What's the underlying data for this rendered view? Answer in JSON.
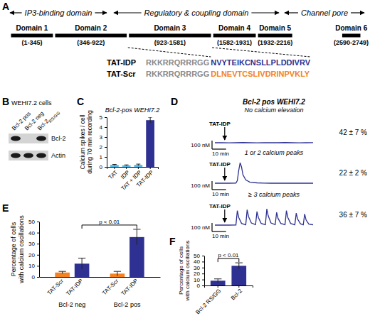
{
  "diagram": {
    "panel": "A",
    "regions": [
      "IP3-binding domain",
      "Regulatory & coupling domain",
      "Channel pore"
    ],
    "domains": [
      {
        "name": "Domain 1",
        "start": 1,
        "end": 345,
        "label": "(1-345)"
      },
      {
        "name": "Domain 2",
        "start": 346,
        "end": 922,
        "label": "(346-922)"
      },
      {
        "name": "Domain 3",
        "start": 923,
        "end": 1581,
        "label": "(923-1581)"
      },
      {
        "name": "Domain 4",
        "start": 1582,
        "end": 1931,
        "label": "(1582-1931)"
      },
      {
        "name": "Domain 5",
        "start": 1932,
        "end": 2216,
        "label": "(1932-2216)"
      },
      {
        "name": "Domain 6",
        "start": 2590,
        "end": 2749,
        "label": "(2590-2749)"
      }
    ],
    "peptides": [
      {
        "name": "TAT-IDP",
        "tat": "RKKRRQRRRGG",
        "sequence": "NVYTEIKCNSLLPLDDIVRV",
        "color": "#2e3192"
      },
      {
        "name": "TAT-Scr",
        "tat": "RKKRRQRRRGG",
        "sequence": "DLNEVTCSLIVDRINPVKLY",
        "color": "#f58220"
      }
    ]
  },
  "blot": {
    "panel": "B",
    "title": "WEHI7.2 cells",
    "lanes": [
      {
        "text": "Bcl-2 pos"
      },
      {
        "text": "Bcl-2 neg"
      },
      {
        "text": "Bcl-2",
        "subscript": "RS/GG"
      }
    ],
    "rows": [
      {
        "label": "Bcl-2",
        "bands": [
          true,
          false,
          true
        ]
      },
      {
        "label": "Actin",
        "bands": [
          true,
          true,
          true
        ]
      }
    ]
  },
  "chart_data": [
    {
      "panel": "C",
      "type": "bar",
      "title": "Bcl-2-pos WEHI7.2",
      "y_label": [
        "Calcium spikes / cell",
        "during 70 min recording"
      ],
      "categories": [
        "TAT",
        "IDP",
        "TAT + IDP",
        "TAT-IDP"
      ],
      "values": [
        0.2,
        0.15,
        0.2,
        4.7
      ],
      "errors": [
        0.05,
        0.05,
        0.08,
        0.3
      ],
      "colors": [
        "#4db8e8",
        "#4db8e8",
        "#4db8e8",
        "#2e3192"
      ],
      "ylim": [
        0,
        5
      ],
      "yticks": [
        0,
        1,
        2,
        3,
        4,
        5
      ]
    },
    {
      "panel": "D",
      "type": "line",
      "title": "Bcl-2 pos WEHI7.2",
      "subtitle": "No calcium elevation",
      "x": [
        0,
        5,
        10,
        15,
        20,
        25,
        30,
        35,
        40,
        45,
        50,
        55,
        60,
        65,
        70
      ],
      "values": [
        100,
        101,
        99,
        100,
        102,
        100,
        99,
        101,
        100,
        100,
        102,
        100,
        99,
        100,
        101
      ],
      "xlim": [
        0,
        70
      ],
      "ylim": [
        50,
        400
      ],
      "tick_labels": false,
      "color": "#2e3192",
      "stimulus": {
        "label": "TAT-IDP",
        "x": 7
      },
      "scale_bars": {
        "x": {
          "value": 10,
          "label": "10 min"
        },
        "y": {
          "value": 100,
          "label": "100 nM"
        }
      },
      "share": "42 ± 7 %"
    },
    {
      "type": "line",
      "subtitle": "1 or 2 calcium peaks",
      "x": [
        0,
        5,
        10,
        15,
        16,
        17,
        18,
        19,
        20,
        22,
        25,
        30,
        35,
        40,
        45,
        50,
        55,
        60,
        65,
        70
      ],
      "values": [
        100,
        101,
        100,
        102,
        130,
        250,
        340,
        290,
        200,
        140,
        112,
        104,
        101,
        100,
        101,
        100,
        100,
        101,
        100,
        100
      ],
      "xlim": [
        0,
        70
      ],
      "ylim": [
        50,
        400
      ],
      "tick_labels": false,
      "color": "#2e3192",
      "stimulus": {
        "label": "TAT-IDP",
        "x": 7
      },
      "scale_bars": {
        "x": {
          "value": 10,
          "label": "10 min"
        },
        "y": {
          "value": 100,
          "label": "100 nM"
        }
      },
      "share": "22 ± 2 %"
    },
    {
      "type": "line",
      "subtitle": "≥ 3 calcium peaks",
      "x": [
        0,
        5,
        10,
        15,
        16,
        17,
        19,
        22,
        23,
        24,
        26,
        29,
        30,
        31,
        33,
        36,
        37,
        38,
        40,
        43,
        44,
        45,
        47,
        50,
        51,
        52,
        54,
        57,
        58,
        59,
        61,
        63,
        64,
        65,
        67,
        70
      ],
      "values": [
        100,
        101,
        100,
        102,
        270,
        190,
        120,
        104,
        280,
        200,
        125,
        105,
        260,
        190,
        120,
        105,
        290,
        210,
        125,
        106,
        250,
        180,
        120,
        105,
        270,
        190,
        120,
        104,
        240,
        170,
        115,
        104,
        230,
        160,
        112,
        104
      ],
      "xlim": [
        0,
        70
      ],
      "ylim": [
        50,
        400
      ],
      "tick_labels": false,
      "color": "#2e3192",
      "stimulus": {
        "label": "TAT-IDP",
        "x": 7
      },
      "scale_bars": {
        "x": {
          "value": 10,
          "label": "10 min"
        },
        "y": {
          "value": 100,
          "label": "100 nM"
        }
      },
      "share": "36 ± 7 %"
    },
    {
      "panel": "E",
      "type": "bar",
      "y_label": [
        "Percentage of cells",
        "with calcium oscillations"
      ],
      "categories": [
        "Bcl-2 neg",
        "Bcl-2 pos"
      ],
      "series": [
        {
          "name": "TAT-Scr",
          "color": "#f58220",
          "values": [
            4,
            3
          ],
          "errors": [
            1,
            2
          ]
        },
        {
          "name": "TAT-IDP",
          "color": "#2e3192",
          "values": [
            12,
            36
          ],
          "errors": [
            5,
            7
          ]
        }
      ],
      "ylim": [
        0,
        50
      ],
      "yticks": [
        0,
        10,
        20,
        30,
        40,
        50
      ],
      "significance": "p < 0.01"
    },
    {
      "panel": "F",
      "type": "bar",
      "y_label": [
        "Percentage of cells",
        "with calcium oscillations"
      ],
      "categories": [
        "Bcl-2 RS/GG",
        "Bcl-2"
      ],
      "values": [
        8,
        33
      ],
      "errors": [
        3,
        5
      ],
      "color": "#2e3192",
      "ylim": [
        0,
        50
      ],
      "yticks": [
        0,
        10,
        20,
        30,
        40,
        50
      ],
      "significance": "p < 0.01"
    }
  ]
}
